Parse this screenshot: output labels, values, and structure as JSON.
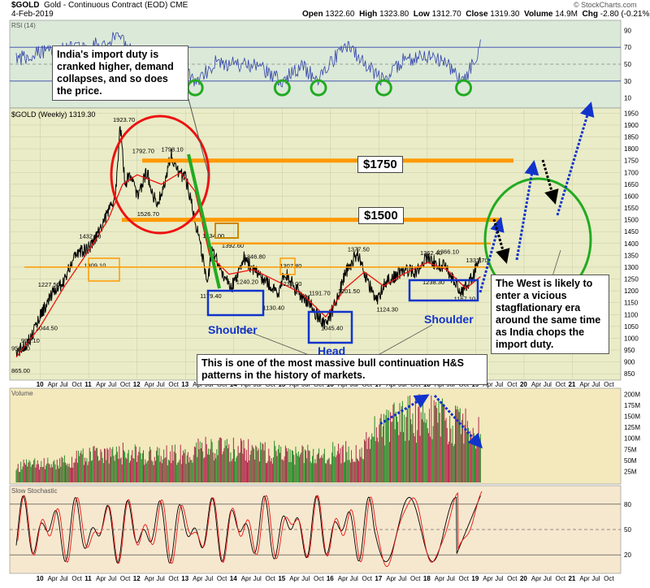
{
  "header": {
    "symbol": "$GOLD",
    "name": "Gold - Continuous Contract (EOD)",
    "exchange": "CME",
    "date": "4-Feb-2019",
    "open_label": "Open",
    "open": "1322.60",
    "high_label": "High",
    "high": "1323.80",
    "low_label": "Low",
    "low": "1312.70",
    "close_label": "Close",
    "close": "1319.30",
    "volume_label": "Volume",
    "volume": "14.9M",
    "chg_label": "Chg",
    "chg": "-2.80 (-0.21%)",
    "credit": "© StockCharts.com"
  },
  "colors": {
    "rsi_bg": "#dbe9d8",
    "price_bg": "#e9ecc6",
    "volume_bg": "#f3e9bd",
    "stoch_bg": "#f6e8cf",
    "orange": "#ff9900",
    "blue": "#1133cc",
    "green": "#22aa22",
    "red": "#ee1111"
  },
  "annotations": {
    "india_note": "India's import duty is cranked higher, demand collapses, and so does the price.",
    "hs_note": "This is one of the most massive bull continuation H&S patterns in the history of markets.",
    "west_note": "The West is likely to enter a vicious stagflationary era around the same time as India chops the import duty.",
    "level_1750": "$1750",
    "level_1500": "$1500",
    "shoulder_left": "Shoulder",
    "head": "Head",
    "shoulder_right": "Shoulder"
  },
  "chart_data": [
    {
      "type": "line",
      "title": "RSI (14)",
      "y_ticks": [
        10,
        30,
        50,
        70,
        90
      ],
      "ylim": [
        0,
        100
      ],
      "reference_lines": [
        30,
        50,
        70
      ],
      "oversold_circles_x": [
        2013.2,
        2015.0,
        2015.75,
        2017.1,
        2018.75
      ]
    },
    {
      "type": "line",
      "title": "$GOLD (Weekly) 1319.30",
      "y_ticks": [
        850,
        900,
        950,
        1000,
        1050,
        1100,
        1150,
        1200,
        1250,
        1300,
        1350,
        1400,
        1450,
        1500,
        1550,
        1600,
        1650,
        1700,
        1750,
        1800,
        1850,
        1900,
        1950
      ],
      "ylim": [
        830,
        1965
      ],
      "x_ticks": [
        "10",
        "11",
        "12",
        "13",
        "14",
        "15",
        "16",
        "17",
        "18",
        "19",
        "20",
        "21"
      ],
      "series": [
        {
          "name": "Gold weekly close",
          "x": [
            2009.5,
            2009.8,
            2010.0,
            2010.3,
            2010.5,
            2010.7,
            2011.0,
            2011.2,
            2011.4,
            2011.55,
            2011.65,
            2011.75,
            2011.85,
            2012.0,
            2012.2,
            2012.4,
            2012.55,
            2012.7,
            2012.85,
            2013.0,
            2013.1,
            2013.25,
            2013.45,
            2013.55,
            2013.7,
            2013.95,
            2014.2,
            2014.45,
            2014.7,
            2014.9,
            2015.05,
            2015.3,
            2015.55,
            2015.75,
            2015.9,
            2016.05,
            2016.3,
            2016.55,
            2016.75,
            2016.95,
            2017.1,
            2017.3,
            2017.55,
            2017.75,
            2018.0,
            2018.15,
            2018.35,
            2018.55,
            2018.7,
            2018.85,
            2019.0,
            2019.1
          ],
          "y": [
            935,
            1000,
            1100,
            1200,
            1245,
            1350,
            1380,
            1450,
            1530,
            1600,
            1900,
            1650,
            1700,
            1600,
            1700,
            1560,
            1640,
            1780,
            1700,
            1680,
            1600,
            1450,
            1234,
            1370,
            1300,
            1210,
            1340,
            1280,
            1235,
            1180,
            1280,
            1200,
            1150,
            1090,
            1060,
            1120,
            1270,
            1360,
            1250,
            1150,
            1230,
            1260,
            1290,
            1280,
            1340,
            1320,
            1300,
            1250,
            1190,
            1230,
            1290,
            1319
          ]
        },
        {
          "name": "Moving average",
          "x": [
            2009.5,
            2010.0,
            2010.5,
            2011.0,
            2011.4,
            2011.7,
            2012.0,
            2012.5,
            2012.9,
            2013.2,
            2013.5,
            2013.9,
            2014.4,
            2014.9,
            2015.4,
            2015.9,
            2016.3,
            2016.7,
            2017.1,
            2017.5,
            2018.0,
            2018.4,
            2018.8,
            2019.1
          ],
          "y": [
            920,
            1050,
            1220,
            1370,
            1500,
            1650,
            1690,
            1650,
            1700,
            1620,
            1350,
            1270,
            1290,
            1240,
            1190,
            1090,
            1210,
            1280,
            1220,
            1270,
            1320,
            1290,
            1210,
            1260
          ]
        }
      ],
      "price_labels": [
        {
          "x": 2009.4,
          "y": 865,
          "text": "865.00"
        },
        {
          "x": 2009.4,
          "y": 958,
          "text": "958.10"
        },
        {
          "x": 2009.6,
          "y": 992,
          "text": "992.10"
        },
        {
          "x": 2009.9,
          "y": 1045,
          "text": "1044.50"
        },
        {
          "x": 2009.95,
          "y": 1227,
          "text": "1227.50"
        },
        {
          "x": 2010.8,
          "y": 1432,
          "text": "1432.50"
        },
        {
          "x": 2010.9,
          "y": 1309,
          "text": "1309.10"
        },
        {
          "x": 2011.5,
          "y": 1923,
          "text": "1923.70"
        },
        {
          "x": 2011.9,
          "y": 1792,
          "text": "1792.70"
        },
        {
          "x": 2012.5,
          "y": 1798,
          "text": "1798.10"
        },
        {
          "x": 2012.0,
          "y": 1526,
          "text": "1526.70"
        },
        {
          "x": 2013.35,
          "y": 1434,
          "text": "1434.00"
        },
        {
          "x": 2013.75,
          "y": 1392,
          "text": "1392.60"
        },
        {
          "x": 2013.3,
          "y": 1179,
          "text": "1179.40"
        },
        {
          "x": 2014.2,
          "y": 1346,
          "text": "1346.80"
        },
        {
          "x": 2014.05,
          "y": 1240,
          "text": "1240.20"
        },
        {
          "x": 2014.6,
          "y": 1130,
          "text": "1130.40"
        },
        {
          "x": 2014.95,
          "y": 1307,
          "text": "1307.80"
        },
        {
          "x": 2014.95,
          "y": 1232,
          "text": "1232.00"
        },
        {
          "x": 2015.55,
          "y": 1191,
          "text": "1191.70"
        },
        {
          "x": 2015.8,
          "y": 1045,
          "text": "1045.40"
        },
        {
          "x": 2016.15,
          "y": 1201,
          "text": "1201.50"
        },
        {
          "x": 2016.35,
          "y": 1377,
          "text": "1377.50"
        },
        {
          "x": 2016.95,
          "y": 1124,
          "text": "1124.30"
        },
        {
          "x": 2017.85,
          "y": 1362,
          "text": "1362.40"
        },
        {
          "x": 2018.2,
          "y": 1366,
          "text": "1366.10"
        },
        {
          "x": 2017.9,
          "y": 1238,
          "text": "1238.30"
        },
        {
          "x": 2018.55,
          "y": 1167,
          "text": "1167.10"
        },
        {
          "x": 2018.8,
          "y": 1331,
          "text": "1331.70"
        }
      ],
      "horizontal_levels": [
        1750,
        1500,
        1400,
        1300
      ]
    },
    {
      "type": "bar",
      "title": "Volume",
      "y_ticks": [
        "25M",
        "50M",
        "75M",
        "100M",
        "125M",
        "150M",
        "175M",
        "200M"
      ],
      "y_tick_values": [
        25,
        50,
        75,
        100,
        125,
        150,
        175,
        200
      ],
      "ylim": [
        0,
        210
      ],
      "volume_trend_x": [
        2009.5,
        2010.5,
        2011.5,
        2012.5,
        2013.5,
        2014.5,
        2015.5,
        2016.0,
        2016.7,
        2016.9,
        2017.5,
        2018.0,
        2018.5,
        2019.1
      ],
      "volume_trend_y": [
        40,
        55,
        75,
        65,
        85,
        80,
        70,
        75,
        85,
        130,
        160,
        165,
        150,
        125
      ]
    },
    {
      "type": "line",
      "title": "Slow Stochastic",
      "y_ticks": [
        20,
        50,
        80
      ],
      "ylim": [
        0,
        100
      ],
      "reference_lines": [
        20,
        50,
        80
      ]
    }
  ]
}
